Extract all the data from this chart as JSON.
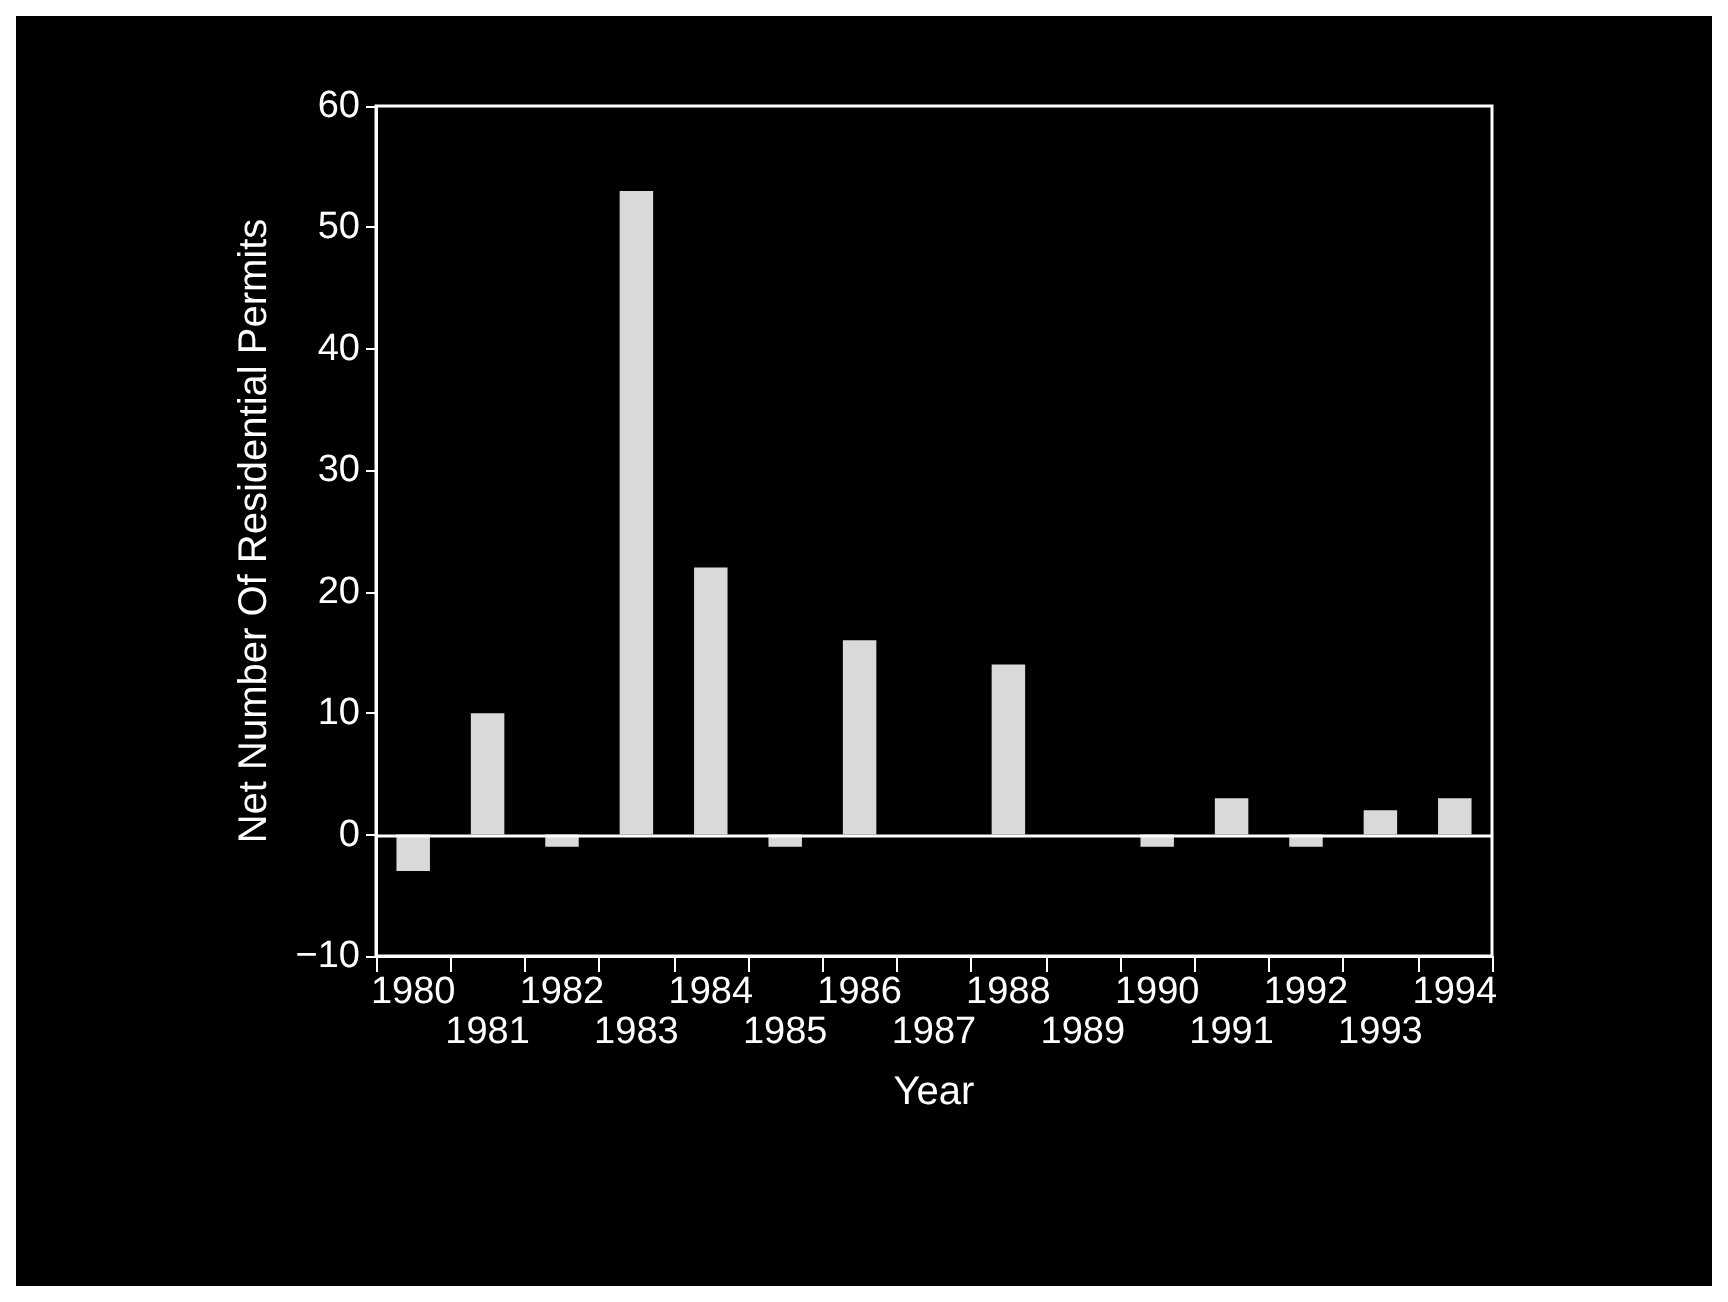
{
  "chart_data": {
    "type": "bar",
    "xlabel": "Year",
    "ylabel": "Net Number Of Residential Permits",
    "categories": [
      "1980",
      "1981",
      "1982",
      "1983",
      "1984",
      "1985",
      "1986",
      "1987",
      "1988",
      "1989",
      "1990",
      "1991",
      "1992",
      "1993",
      "1994"
    ],
    "values": [
      -3,
      10,
      -1,
      53,
      22,
      -1,
      16,
      0,
      14,
      0,
      -1,
      3,
      -1,
      2,
      3
    ],
    "color": "#d9d9d9",
    "ylim": [
      -10,
      60
    ],
    "yticks": [
      -10,
      0,
      10,
      20,
      30,
      40,
      50,
      60
    ],
    "ref_lines": [
      {
        "axis": "y",
        "value": 0,
        "color": "#ffffff"
      }
    ],
    "grid": false
  }
}
